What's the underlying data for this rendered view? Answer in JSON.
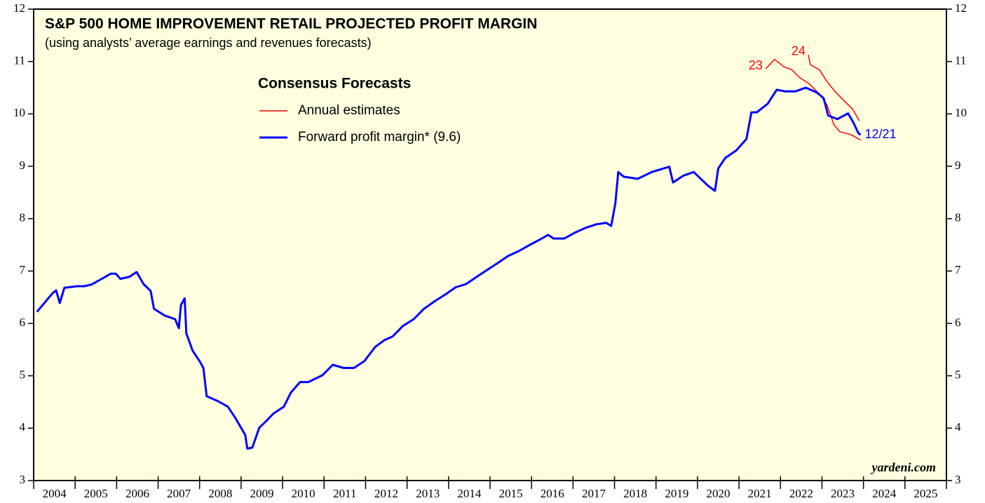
{
  "chart_data": {
    "type": "line",
    "title": "S&P 500 HOME IMPROVEMENT RETAIL PROJECTED PROFIT MARGIN",
    "subtitle": "(using analysts’ average earnings and revenues forecasts)",
    "legend_title": "Consensus Forecasts",
    "source": "yardeni.com",
    "xlim": [
      2004,
      2026
    ],
    "xticks": [
      2004,
      2005,
      2006,
      2007,
      2008,
      2009,
      2010,
      2011,
      2012,
      2013,
      2014,
      2015,
      2016,
      2017,
      2018,
      2019,
      2020,
      2021,
      2022,
      2023,
      2024,
      2025,
      2026
    ],
    "xlabels": [
      {
        "value": 2004.5,
        "label": "2004"
      },
      {
        "value": 2005.5,
        "label": "2005"
      },
      {
        "value": 2006.5,
        "label": "2006"
      },
      {
        "value": 2007.5,
        "label": "2007"
      },
      {
        "value": 2008.5,
        "label": "2008"
      },
      {
        "value": 2009.5,
        "label": "2009"
      },
      {
        "value": 2010.5,
        "label": "2010"
      },
      {
        "value": 2011.5,
        "label": "2011"
      },
      {
        "value": 2012.5,
        "label": "2012"
      },
      {
        "value": 2013.5,
        "label": "2013"
      },
      {
        "value": 2014.5,
        "label": "2014"
      },
      {
        "value": 2015.5,
        "label": "2015"
      },
      {
        "value": 2016.5,
        "label": "2016"
      },
      {
        "value": 2017.5,
        "label": "2017"
      },
      {
        "value": 2018.5,
        "label": "2018"
      },
      {
        "value": 2019.5,
        "label": "2019"
      },
      {
        "value": 2020.5,
        "label": "2020"
      },
      {
        "value": 2021.5,
        "label": "2021"
      },
      {
        "value": 2022.5,
        "label": "2022"
      },
      {
        "value": 2023.5,
        "label": "2023"
      },
      {
        "value": 2024.5,
        "label": "2024"
      },
      {
        "value": 2025.5,
        "label": "2025"
      }
    ],
    "ylim": [
      3,
      12
    ],
    "yticks": [
      3,
      4,
      5,
      6,
      7,
      8,
      9,
      10,
      11,
      12
    ],
    "series": [
      {
        "name": "Annual estimates",
        "label": "23",
        "color": "#ff0000",
        "width": 1.5,
        "x": [
          2021.64,
          2021.86,
          2022.08,
          2022.28,
          2022.45,
          2022.7,
          2022.95,
          2023.12,
          2023.29,
          2023.43,
          2023.71,
          2023.93
        ],
        "values": [
          10.86,
          11.04,
          10.9,
          10.84,
          10.7,
          10.57,
          10.37,
          10.17,
          9.79,
          9.66,
          9.6,
          9.5
        ]
      },
      {
        "label": "24",
        "color": "#ff0000",
        "width": 1.5,
        "x": [
          2022.67,
          2022.72,
          2022.94,
          2023.11,
          2023.31,
          2023.56,
          2023.73,
          2023.9
        ],
        "values": [
          11.13,
          10.94,
          10.84,
          10.63,
          10.43,
          10.23,
          10.1,
          9.87
        ]
      },
      {
        "name": "Forward profit margin* (9.6)",
        "label": "12/21",
        "color": "#0000ff",
        "width": 3,
        "x": [
          2004.08,
          2004.29,
          2004.46,
          2004.54,
          2004.63,
          2004.74,
          2005.05,
          2005.22,
          2005.39,
          2005.64,
          2005.86,
          2005.98,
          2006.09,
          2006.31,
          2006.48,
          2006.65,
          2006.82,
          2006.9,
          2007.16,
          2007.41,
          2007.5,
          2007.55,
          2007.64,
          2007.68,
          2007.83,
          2008.0,
          2008.09,
          2008.17,
          2008.43,
          2008.68,
          2008.85,
          2009.02,
          2009.1,
          2009.15,
          2009.27,
          2009.44,
          2009.61,
          2009.78,
          2010.03,
          2010.2,
          2010.42,
          2010.62,
          2010.96,
          2011.21,
          2011.47,
          2011.72,
          2011.97,
          2012.23,
          2012.45,
          2012.65,
          2012.9,
          2013.16,
          2013.41,
          2013.66,
          2013.92,
          2014.17,
          2014.42,
          2014.68,
          2014.93,
          2015.18,
          2015.44,
          2015.69,
          2015.94,
          2016.2,
          2016.4,
          2016.53,
          2016.79,
          2017.04,
          2017.29,
          2017.55,
          2017.8,
          2017.92,
          2018.02,
          2018.09,
          2018.22,
          2018.56,
          2018.9,
          2019.32,
          2019.41,
          2019.66,
          2019.91,
          2020.08,
          2020.25,
          2020.42,
          2020.5,
          2020.67,
          2020.93,
          2021.18,
          2021.3,
          2021.43,
          2021.69,
          2021.91,
          2022.11,
          2022.36,
          2022.61,
          2022.87,
          2023.04,
          2023.15,
          2023.37,
          2023.63,
          2023.76,
          2023.88,
          2023.93
        ],
        "values": [
          6.22,
          6.42,
          6.58,
          6.63,
          6.39,
          6.68,
          6.71,
          6.71,
          6.74,
          6.85,
          6.95,
          6.95,
          6.85,
          6.89,
          6.98,
          6.75,
          6.62,
          6.28,
          6.15,
          6.08,
          5.91,
          6.35,
          6.48,
          5.81,
          5.48,
          5.28,
          5.15,
          4.61,
          4.52,
          4.41,
          4.21,
          3.98,
          3.87,
          3.61,
          3.63,
          4.01,
          4.14,
          4.28,
          4.41,
          4.68,
          4.88,
          4.88,
          5.01,
          5.21,
          5.15,
          5.15,
          5.28,
          5.55,
          5.68,
          5.75,
          5.95,
          6.08,
          6.28,
          6.42,
          6.55,
          6.69,
          6.75,
          6.89,
          7.02,
          7.15,
          7.29,
          7.38,
          7.49,
          7.6,
          7.69,
          7.62,
          7.62,
          7.73,
          7.82,
          7.89,
          7.92,
          7.86,
          8.29,
          8.89,
          8.8,
          8.76,
          8.89,
          8.99,
          8.69,
          8.82,
          8.89,
          8.76,
          8.63,
          8.53,
          8.96,
          9.16,
          9.3,
          9.52,
          10.03,
          10.03,
          10.19,
          10.46,
          10.43,
          10.43,
          10.5,
          10.41,
          10.3,
          9.97,
          9.9,
          10.01,
          9.83,
          9.63,
          9.6
        ]
      }
    ]
  }
}
